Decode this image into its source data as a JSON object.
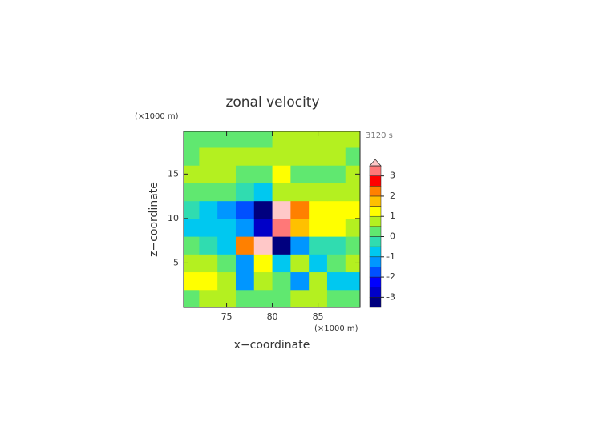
{
  "chart_data": {
    "type": "contour",
    "title": "zonal velocity",
    "x_label": "x−coordinate",
    "y_label": "z−coordinate",
    "x_unit": "(×1000 m)",
    "y_unit": "(×1000 m)",
    "time_label": "3120 s",
    "xlim": [
      70.3,
      89.6
    ],
    "ylim": [
      0,
      19.8
    ],
    "xticks": [
      75,
      80,
      85
    ],
    "yticks": [
      5,
      10,
      15
    ],
    "x": [
      71,
      73,
      75,
      77,
      79,
      81,
      83,
      85,
      87,
      89
    ],
    "y": [
      1,
      3,
      5,
      7,
      9,
      11,
      13,
      15,
      17,
      19
    ],
    "z": [
      [
        0.3,
        0.6,
        0.6,
        0.4,
        0.3,
        0.3,
        0.5,
        0.6,
        0.3,
        0.2
      ],
      [
        1.0,
        1.2,
        0.6,
        -1.4,
        0.6,
        0.4,
        -1.2,
        0.6,
        -0.6,
        -0.8
      ],
      [
        0.6,
        0.7,
        0.3,
        -1.2,
        1.2,
        -1.0,
        0.8,
        -0.8,
        0.4,
        0.6
      ],
      [
        0.3,
        -0.3,
        -0.8,
        2.0,
        3.6,
        -3.6,
        -1.5,
        -0.3,
        -0.2,
        0.2
      ],
      [
        -0.6,
        -0.8,
        -0.9,
        -1.2,
        -3.0,
        3.2,
        1.6,
        1.2,
        1.1,
        0.9
      ],
      [
        -0.4,
        -0.6,
        -1.2,
        -1.8,
        -3.5,
        3.6,
        2.0,
        1.2,
        1.0,
        1.2
      ],
      [
        0.3,
        0.3,
        0.2,
        -0.3,
        -0.6,
        0.8,
        0.6,
        0.6,
        0.7,
        0.6
      ],
      [
        0.7,
        0.7,
        0.6,
        0.3,
        0.2,
        1.2,
        0.3,
        0.2,
        0.3,
        0.6
      ],
      [
        0.3,
        0.6,
        0.6,
        0.7,
        0.8,
        0.8,
        0.7,
        0.6,
        0.6,
        0.3
      ],
      [
        0.3,
        0.3,
        0.3,
        0.3,
        0.3,
        0.6,
        0.6,
        0.6,
        0.6,
        0.6
      ]
    ],
    "colorbar": {
      "lim": [
        -3.5,
        3.5
      ],
      "ticks": [
        -3,
        -2,
        -1,
        0,
        1,
        2,
        3
      ],
      "colors": [
        "#00007f",
        "#0000c8",
        "#0000ff",
        "#0050ff",
        "#0096ff",
        "#00c8f0",
        "#30dcb0",
        "#60e870",
        "#b4f020",
        "#ffff00",
        "#ffc000",
        "#ff8000",
        "#ff0000",
        "#ff7878"
      ],
      "over_color": "#ffc8c8"
    }
  }
}
